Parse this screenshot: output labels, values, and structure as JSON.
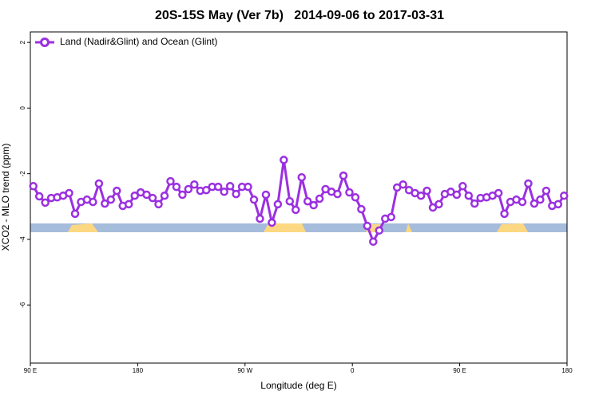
{
  "chart_data": {
    "type": "line",
    "title": "20S-15S May (Ver 7b)   2014-09-06 to 2017-03-31",
    "xlabel": "Longitude (deg E)",
    "ylabel": "XCO2 - MLO trend (ppm)",
    "xlim": [
      90,
      540
    ],
    "ylim": [
      -7.77,
      2.32
    ],
    "xticks": [
      {
        "value": 90,
        "label": "90 E"
      },
      {
        "value": 180,
        "label": "180"
      },
      {
        "value": 270,
        "label": "90 W"
      },
      {
        "value": 360,
        "label": "0"
      },
      {
        "value": 450,
        "label": "90 E"
      },
      {
        "value": 540,
        "label": "180"
      }
    ],
    "yticks": [
      2,
      0,
      -2,
      -4,
      -6
    ],
    "legend": "top-left",
    "x": [
      92.5,
      97.5,
      102.5,
      107.5,
      112.5,
      117.5,
      122.5,
      127.5,
      132.5,
      137.5,
      142.5,
      147.5,
      152.5,
      157.5,
      162.5,
      167.5,
      172.5,
      177.5,
      182.5,
      187.5,
      192.5,
      197.5,
      202.5,
      207.5,
      212.5,
      217.5,
      222.5,
      227.5,
      232.5,
      237.5,
      242.5,
      247.5,
      252.5,
      257.5,
      262.5,
      267.5,
      272.5,
      277.5,
      282.5,
      287.5,
      292.5,
      297.5,
      302.5,
      307.5,
      312.5,
      317.5,
      322.5,
      327.5,
      332.5,
      337.5,
      342.5,
      347.5,
      352.5,
      357.5,
      362.5,
      367.5,
      372.5,
      377.5,
      382.5,
      387.5,
      392.5,
      397.5,
      402.5,
      407.5,
      412.5,
      417.5,
      422.5,
      427.5,
      432.5,
      437.5,
      442.5,
      447.5,
      452.5,
      457.5,
      462.5,
      467.5,
      472.5,
      477.5,
      482.5,
      487.5,
      492.5,
      497.5,
      502.5,
      507.5,
      512.5,
      517.5,
      522.5,
      527.5,
      532.5,
      537.5
    ],
    "series": [
      {
        "name": "Land (Nadir&Glint) and Ocean (Glint)",
        "color": "#9b30e0",
        "values": [
          -2.38,
          -2.69,
          -2.88,
          -2.74,
          -2.72,
          -2.67,
          -2.59,
          -3.22,
          -2.86,
          -2.79,
          -2.86,
          -2.3,
          -2.91,
          -2.79,
          -2.52,
          -2.98,
          -2.93,
          -2.67,
          -2.57,
          -2.64,
          -2.74,
          -2.93,
          -2.67,
          -2.23,
          -2.4,
          -2.64,
          -2.47,
          -2.33,
          -2.52,
          -2.5,
          -2.4,
          -2.4,
          -2.55,
          -2.38,
          -2.62,
          -2.4,
          -2.4,
          -2.79,
          -3.37,
          -2.64,
          -3.49,
          -2.93,
          -1.58,
          -2.84,
          -3.1,
          -2.11,
          -2.84,
          -2.96,
          -2.76,
          -2.47,
          -2.55,
          -2.62,
          -2.06,
          -2.57,
          -2.72,
          -3.08,
          -3.59,
          -4.07,
          -3.73,
          -3.37,
          -3.32,
          -2.42,
          -2.33,
          -2.5,
          -2.59,
          -2.67,
          -2.52,
          -3.03,
          -2.93,
          -2.62,
          -2.55,
          -2.64,
          -2.38,
          -2.67,
          -2.91,
          -2.74,
          -2.72,
          -2.67,
          -2.59,
          -3.22,
          -2.86,
          -2.79,
          -2.86,
          -2.3,
          -2.91,
          -2.79,
          -2.52,
          -2.98,
          -2.93,
          -2.67
        ]
      }
    ]
  }
}
